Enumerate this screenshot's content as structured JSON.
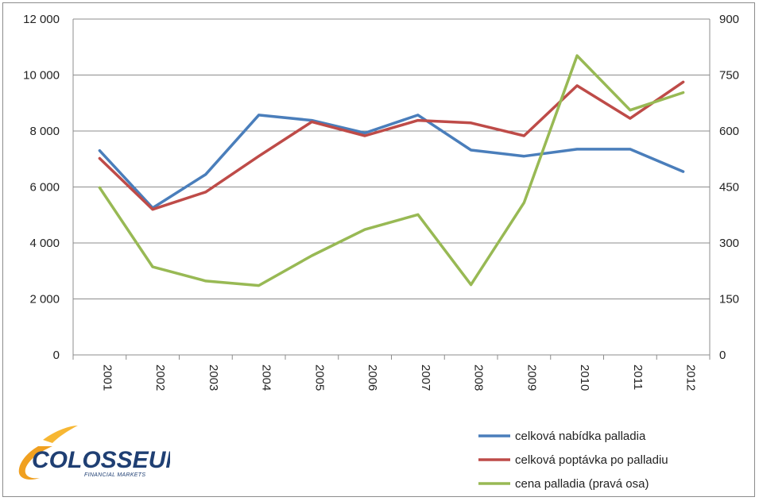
{
  "chart_data": {
    "type": "line",
    "categories": [
      "2001",
      "2002",
      "2003",
      "2004",
      "2005",
      "2006",
      "2007",
      "2008",
      "2009",
      "2010",
      "2011",
      "2012"
    ],
    "y_left": {
      "min": 0,
      "max": 12000,
      "ticks": [
        "0",
        "2 000",
        "4 000",
        "6 000",
        "8 000",
        "10 000",
        "12 000"
      ]
    },
    "y_right": {
      "min": 0,
      "max": 900,
      "ticks": [
        "0",
        "150",
        "300",
        "450",
        "600",
        "750",
        "900"
      ]
    },
    "grid": true,
    "legend_position": "bottom-right",
    "series": [
      {
        "name": "celková nabídka palladia",
        "axis": "left",
        "color": "#4a7ebb",
        "values": [
          7300,
          5250,
          6450,
          8570,
          8380,
          7930,
          8570,
          7320,
          7100,
          7350,
          7350,
          6550
        ]
      },
      {
        "name": "celková poptávka po palladiu",
        "axis": "left",
        "color": "#be4b48",
        "values": [
          7020,
          5200,
          5820,
          7100,
          8330,
          7830,
          8380,
          8290,
          7830,
          9620,
          8450,
          9750
        ]
      },
      {
        "name": "cena palladia (pravá osa)",
        "axis": "right",
        "color": "#98b954",
        "values": [
          448,
          236,
          198,
          186,
          266,
          336,
          376,
          188,
          408,
          802,
          656,
          703
        ]
      }
    ]
  },
  "logo": {
    "brand": "COLOSSEUM",
    "tagline": "FINANCIAL MARKETS",
    "color": "#1f3f73",
    "accent": "#f0a020"
  }
}
